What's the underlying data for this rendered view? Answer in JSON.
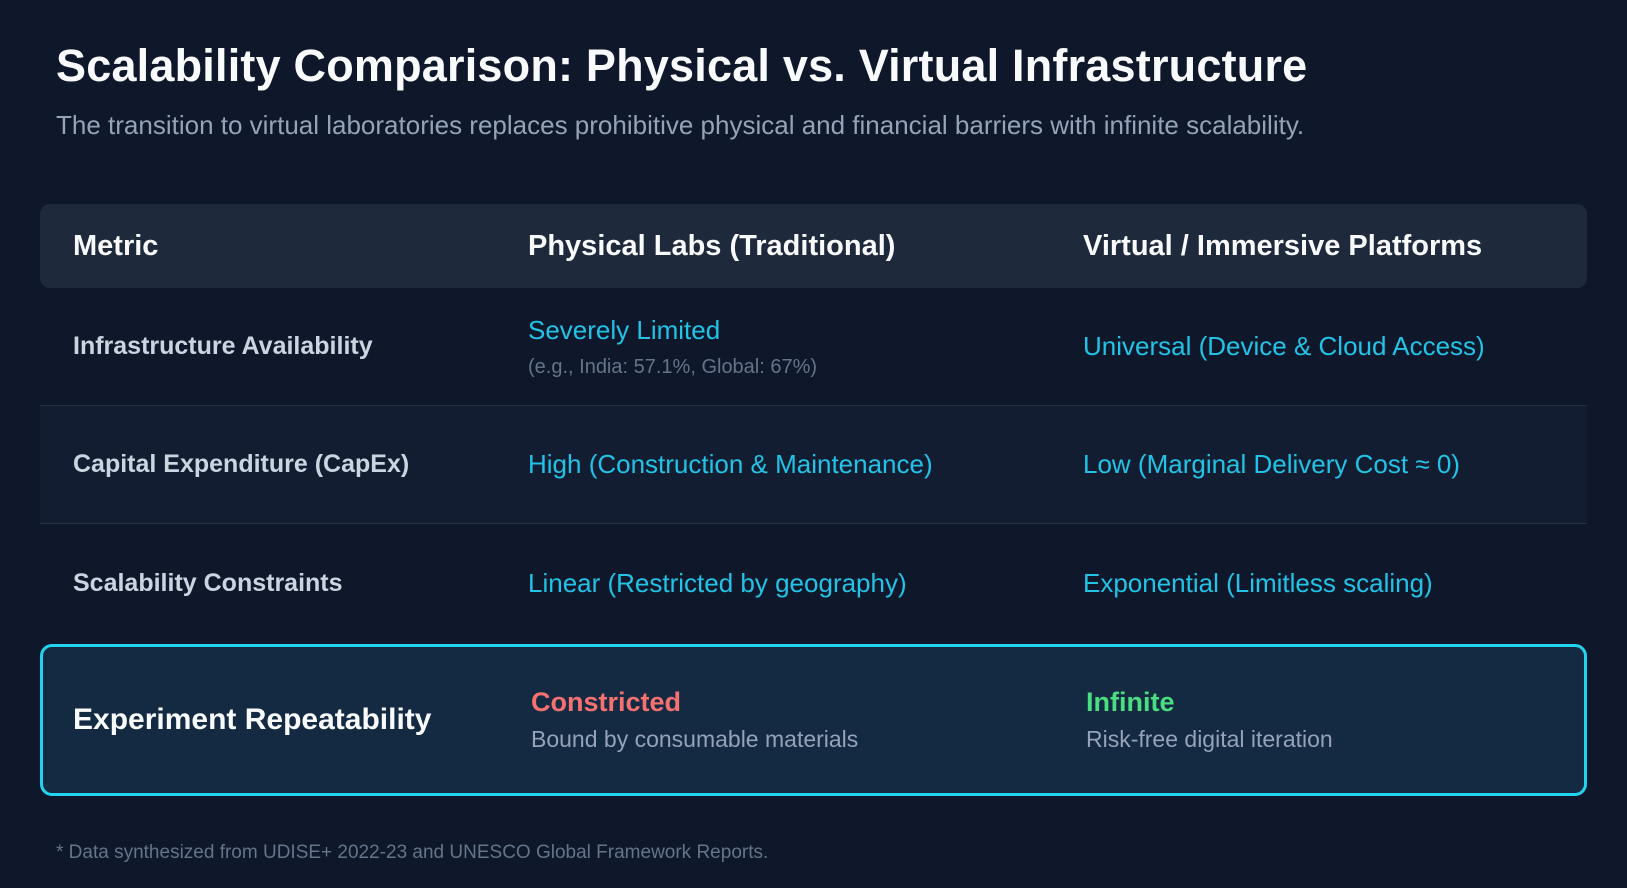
{
  "header": {
    "title": "Scalability Comparison: Physical vs. Virtual Infrastructure",
    "subtitle": "The transition to virtual laboratories replaces prohibitive physical and financial barriers with infinite scalability."
  },
  "table": {
    "headers": [
      "Metric",
      "Physical Labs (Traditional)",
      "Virtual / Immersive Platforms"
    ],
    "rows": [
      [
        {
          "text": "Infrastructure Availability"
        },
        {
          "text": "Severely Limited",
          "note": "(e.g., India: 57.1%, Global: 67%)"
        },
        {
          "text": "Universal (Device & Cloud Access)"
        }
      ],
      [
        {
          "text": "Capital Expenditure (CapEx)"
        },
        {
          "text": "High (Construction & Maintenance)"
        },
        {
          "text": "Low (Marginal Delivery Cost ≈ 0)"
        }
      ],
      [
        {
          "text": "Scalability Constraints"
        },
        {
          "text": "Linear (Restricted by geography)"
        },
        {
          "text": "Exponential (Limitless scaling)"
        }
      ],
      [
        {
          "text": "Experiment Repeatability"
        },
        {
          "text": "Constricted",
          "note": "Bound by consumable materials"
        },
        {
          "text": "Infinite",
          "note": "Risk-free digital iteration"
        }
      ]
    ]
  },
  "footnote": "* Data synthesized from UDISE+ 2022-23 and UNESCO Global Framework Reports."
}
